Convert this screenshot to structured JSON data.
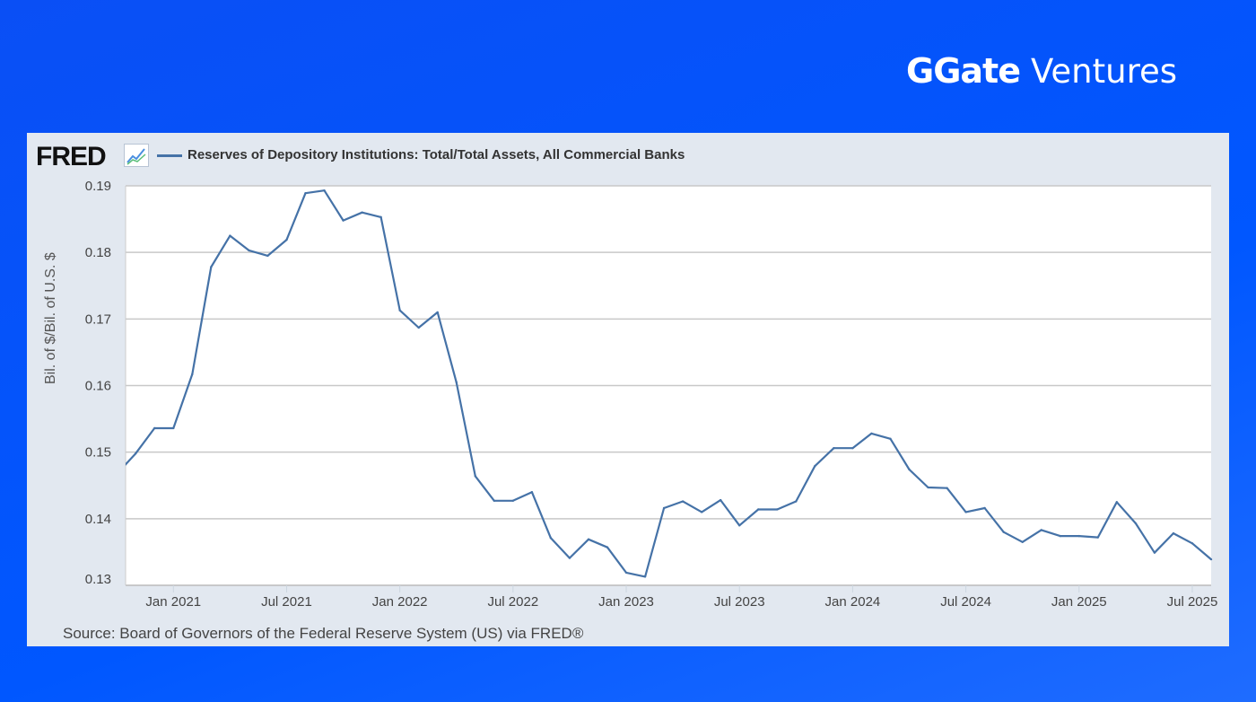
{
  "brand": {
    "mark": "G",
    "name": "Gate",
    "suffix": "Ventures"
  },
  "fred_logo": "FRED",
  "source": "Source: Board of Governors of the Federal Reserve System (US) via FRED®",
  "chart_data": {
    "type": "line",
    "title": "",
    "legend": "Reserves of Depository Institutions: Total/Total Assets, All Commercial Banks",
    "legend_placement": "top-left",
    "xlabel": "",
    "ylabel": "Bil. of $/Bil. of U.S. $",
    "ylim": [
      0.13,
      0.19
    ],
    "xlim": [
      "2020-10-15",
      "2025-08-01"
    ],
    "grid": "horizontal",
    "line_color": "#4572a7",
    "yticks": [
      "0.13",
      "0.14",
      "0.15",
      "0.16",
      "0.17",
      "0.18",
      "0.19"
    ],
    "xticks": [
      {
        "date": "2021-01-01",
        "label": "Jan 2021"
      },
      {
        "date": "2021-07-01",
        "label": "Jul 2021"
      },
      {
        "date": "2022-01-01",
        "label": "Jan 2022"
      },
      {
        "date": "2022-07-01",
        "label": "Jul 2022"
      },
      {
        "date": "2023-01-01",
        "label": "Jan 2023"
      },
      {
        "date": "2023-07-01",
        "label": "Jul 2023"
      },
      {
        "date": "2024-01-01",
        "label": "Jan 2024"
      },
      {
        "date": "2024-07-01",
        "label": "Jul 2024"
      },
      {
        "date": "2025-01-01",
        "label": "Jan 2025"
      },
      {
        "date": "2025-07-01",
        "label": "Jul 2025"
      }
    ],
    "series": [
      {
        "name": "Reserves of Depository Institutions: Total/Total Assets, All Commercial Banks",
        "x": [
          "2020-10",
          "2020-11",
          "2020-12",
          "2021-01",
          "2021-02",
          "2021-03",
          "2021-04",
          "2021-05",
          "2021-06",
          "2021-07",
          "2021-08",
          "2021-09",
          "2021-10",
          "2021-11",
          "2021-12",
          "2022-01",
          "2022-02",
          "2022-03",
          "2022-04",
          "2022-05",
          "2022-06",
          "2022-07",
          "2022-08",
          "2022-09",
          "2022-10",
          "2022-11",
          "2022-12",
          "2023-01",
          "2023-02",
          "2023-03",
          "2023-04",
          "2023-05",
          "2023-06",
          "2023-07",
          "2023-08",
          "2023-09",
          "2023-10",
          "2023-11",
          "2023-12",
          "2024-01",
          "2024-02",
          "2024-03",
          "2024-04",
          "2024-05",
          "2024-06",
          "2024-07",
          "2024-08",
          "2024-09",
          "2024-10",
          "2024-11",
          "2024-12",
          "2025-01",
          "2025-02",
          "2025-03",
          "2025-04",
          "2025-05",
          "2025-06",
          "2025-07",
          "2025-08"
        ],
        "y": [
          0.1467,
          0.1498,
          0.1536,
          0.1536,
          0.1617,
          0.1778,
          0.1825,
          0.1803,
          0.1795,
          0.1819,
          0.1889,
          0.1893,
          0.1848,
          0.186,
          0.1853,
          0.1713,
          0.1687,
          0.171,
          0.1605,
          0.1464,
          0.1427,
          0.1427,
          0.144,
          0.1371,
          0.1341,
          0.1369,
          0.1357,
          0.1319,
          0.1313,
          0.1416,
          0.1426,
          0.141,
          0.1428,
          0.139,
          0.1414,
          0.1414,
          0.1426,
          0.1479,
          0.1506,
          0.1506,
          0.1528,
          0.152,
          0.1474,
          0.1447,
          0.1446,
          0.141,
          0.1416,
          0.138,
          0.1365,
          0.1383,
          0.1374,
          0.1374,
          0.1372,
          0.1425,
          0.1393,
          0.1349,
          0.1378,
          0.1363,
          0.1339
        ]
      }
    ]
  }
}
